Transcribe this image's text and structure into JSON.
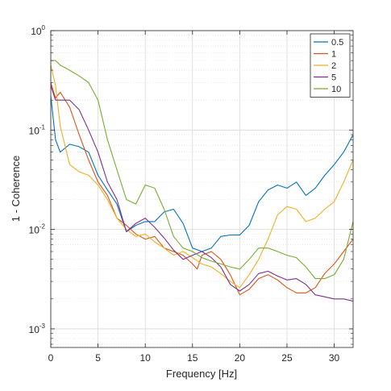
{
  "chart_data": {
    "type": "line",
    "xlabel": "Frequency [Hz]",
    "ylabel": "1 - Coherence",
    "xlim": [
      0,
      32
    ],
    "ylim": [
      0.00065,
      1
    ],
    "yscale": "log",
    "grid": true,
    "legend_position": "top-right",
    "x_ticks": [
      0,
      5,
      10,
      15,
      20,
      25,
      30
    ],
    "y_ticks": [
      {
        "value": 1,
        "base": "10",
        "exp": "0"
      },
      {
        "value": 0.1,
        "base": "10",
        "exp": "-1"
      },
      {
        "value": 0.01,
        "base": "10",
        "exp": "-2"
      },
      {
        "value": 0.001,
        "base": "10",
        "exp": "-3"
      }
    ],
    "series": [
      {
        "name": "0.5",
        "color": "#0072BD",
        "points": [
          [
            0,
            0.22
          ],
          [
            0.5,
            0.08
          ],
          [
            1,
            0.06
          ],
          [
            2,
            0.072
          ],
          [
            3,
            0.068
          ],
          [
            4,
            0.06
          ],
          [
            5,
            0.035
          ],
          [
            6,
            0.025
          ],
          [
            7,
            0.018
          ],
          [
            8,
            0.0095
          ],
          [
            9,
            0.011
          ],
          [
            10,
            0.012
          ],
          [
            11,
            0.012
          ],
          [
            12,
            0.015
          ],
          [
            13,
            0.016
          ],
          [
            14,
            0.0115
          ],
          [
            15,
            0.0065
          ],
          [
            16,
            0.006
          ],
          [
            17,
            0.0065
          ],
          [
            18,
            0.0085
          ],
          [
            19,
            0.0088
          ],
          [
            20,
            0.0088
          ],
          [
            21,
            0.011
          ],
          [
            22,
            0.019
          ],
          [
            23,
            0.025
          ],
          [
            24,
            0.028
          ],
          [
            25,
            0.026
          ],
          [
            26,
            0.03
          ],
          [
            27,
            0.022
          ],
          [
            28,
            0.026
          ],
          [
            29,
            0.035
          ],
          [
            30,
            0.045
          ],
          [
            31,
            0.06
          ],
          [
            32,
            0.09
          ]
        ]
      },
      {
        "name": "1",
        "color": "#D95319",
        "points": [
          [
            0,
            0.3
          ],
          [
            0.5,
            0.21
          ],
          [
            1,
            0.24
          ],
          [
            2,
            0.17
          ],
          [
            3,
            0.09
          ],
          [
            4,
            0.05
          ],
          [
            5,
            0.03
          ],
          [
            6,
            0.022
          ],
          [
            7,
            0.013
          ],
          [
            8,
            0.011
          ],
          [
            9,
            0.009
          ],
          [
            10,
            0.008
          ],
          [
            11,
            0.0085
          ],
          [
            12,
            0.0065
          ],
          [
            13,
            0.006
          ],
          [
            14,
            0.0055
          ],
          [
            15,
            0.0045
          ],
          [
            15.5,
            0.004
          ],
          [
            16,
            0.0055
          ],
          [
            17,
            0.006
          ],
          [
            18,
            0.005
          ],
          [
            19,
            0.0035
          ],
          [
            20,
            0.0022
          ],
          [
            21,
            0.0025
          ],
          [
            22,
            0.0032
          ],
          [
            23,
            0.0035
          ],
          [
            24,
            0.0031
          ],
          [
            25,
            0.0026
          ],
          [
            26,
            0.0023
          ],
          [
            27,
            0.0023
          ],
          [
            28,
            0.0026
          ],
          [
            29,
            0.0036
          ],
          [
            30,
            0.0045
          ],
          [
            31,
            0.006
          ],
          [
            32,
            0.008
          ]
        ]
      },
      {
        "name": "2",
        "color": "#EDB120",
        "points": [
          [
            0,
            0.45
          ],
          [
            0.5,
            0.28
          ],
          [
            1,
            0.11
          ],
          [
            2,
            0.045
          ],
          [
            3,
            0.038
          ],
          [
            4,
            0.035
          ],
          [
            5,
            0.028
          ],
          [
            6,
            0.02
          ],
          [
            7,
            0.013
          ],
          [
            8,
            0.01
          ],
          [
            9,
            0.0085
          ],
          [
            10,
            0.009
          ],
          [
            11,
            0.0075
          ],
          [
            12,
            0.0065
          ],
          [
            13,
            0.0055
          ],
          [
            14,
            0.006
          ],
          [
            15,
            0.0052
          ],
          [
            16,
            0.0045
          ],
          [
            17,
            0.0042
          ],
          [
            18,
            0.0036
          ],
          [
            19,
            0.003
          ],
          [
            20,
            0.0026
          ],
          [
            21,
            0.0035
          ],
          [
            22,
            0.005
          ],
          [
            23,
            0.008
          ],
          [
            24,
            0.014
          ],
          [
            25,
            0.017
          ],
          [
            26,
            0.016
          ],
          [
            27,
            0.012
          ],
          [
            28,
            0.013
          ],
          [
            29,
            0.016
          ],
          [
            30,
            0.019
          ],
          [
            31,
            0.03
          ],
          [
            32,
            0.05
          ]
        ]
      },
      {
        "name": "5",
        "color": "#7E2F8E",
        "points": [
          [
            0,
            0.28
          ],
          [
            0.5,
            0.2
          ],
          [
            1,
            0.2
          ],
          [
            2,
            0.2
          ],
          [
            3,
            0.16
          ],
          [
            4,
            0.1
          ],
          [
            5,
            0.06
          ],
          [
            6,
            0.03
          ],
          [
            7,
            0.02
          ],
          [
            8,
            0.0095
          ],
          [
            9,
            0.0115
          ],
          [
            10,
            0.013
          ],
          [
            11,
            0.0105
          ],
          [
            12,
            0.0082
          ],
          [
            13,
            0.0062
          ],
          [
            14,
            0.005
          ],
          [
            15,
            0.0055
          ],
          [
            16,
            0.006
          ],
          [
            17,
            0.0052
          ],
          [
            18,
            0.0042
          ],
          [
            19,
            0.0028
          ],
          [
            20,
            0.0024
          ],
          [
            21,
            0.0028
          ],
          [
            22,
            0.0036
          ],
          [
            23,
            0.0038
          ],
          [
            24,
            0.0034
          ],
          [
            25,
            0.0031
          ],
          [
            26,
            0.0032
          ],
          [
            27,
            0.0028
          ],
          [
            28,
            0.0022
          ],
          [
            29,
            0.0021
          ],
          [
            30,
            0.002
          ],
          [
            31,
            0.002
          ],
          [
            32,
            0.0019
          ]
        ]
      },
      {
        "name": "10",
        "color": "#77AC30",
        "points": [
          [
            0,
            0.5
          ],
          [
            0.5,
            0.5
          ],
          [
            1,
            0.45
          ],
          [
            2,
            0.4
          ],
          [
            3,
            0.35
          ],
          [
            4,
            0.3
          ],
          [
            5,
            0.2
          ],
          [
            6,
            0.08
          ],
          [
            7,
            0.04
          ],
          [
            8,
            0.02
          ],
          [
            9,
            0.018
          ],
          [
            10,
            0.028
          ],
          [
            11,
            0.026
          ],
          [
            12,
            0.016
          ],
          [
            13,
            0.0085
          ],
          [
            14,
            0.0065
          ],
          [
            15,
            0.006
          ],
          [
            16,
            0.0052
          ],
          [
            17,
            0.0048
          ],
          [
            18,
            0.0045
          ],
          [
            19,
            0.0042
          ],
          [
            20,
            0.004
          ],
          [
            21,
            0.005
          ],
          [
            22,
            0.0065
          ],
          [
            23,
            0.0065
          ],
          [
            24,
            0.006
          ],
          [
            25,
            0.0055
          ],
          [
            26,
            0.0052
          ],
          [
            27,
            0.0042
          ],
          [
            28,
            0.0032
          ],
          [
            29,
            0.0032
          ],
          [
            30,
            0.0035
          ],
          [
            31,
            0.005
          ],
          [
            32,
            0.012
          ]
        ]
      }
    ]
  }
}
